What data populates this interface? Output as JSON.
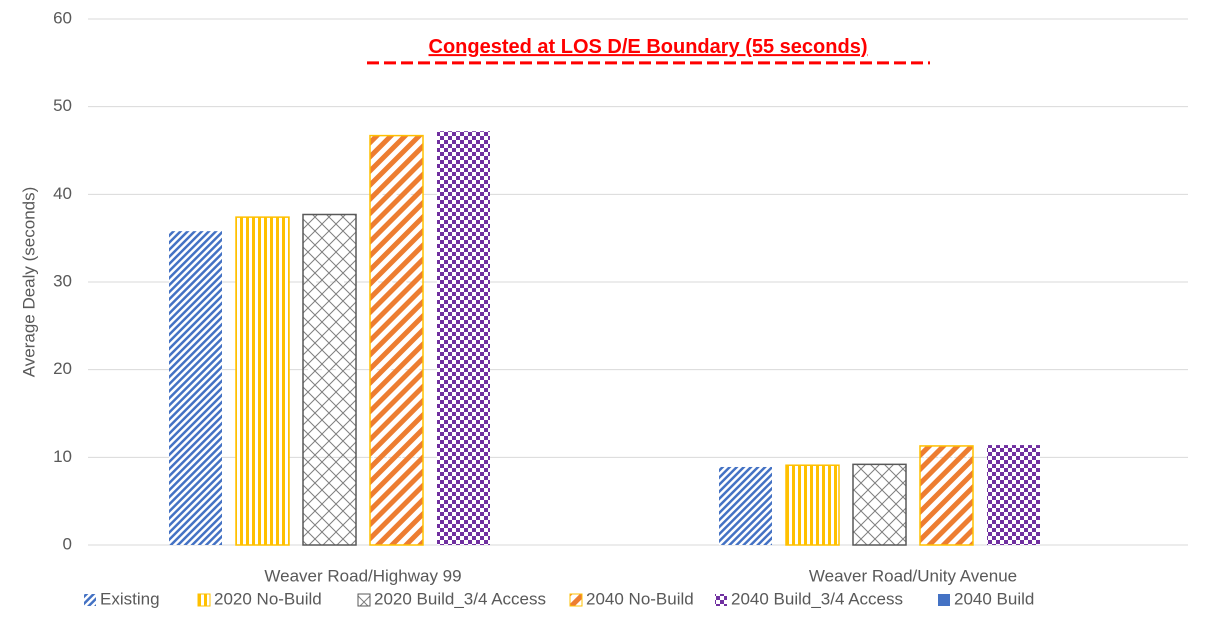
{
  "chart_data": {
    "type": "bar",
    "annotation": "Congested at LOS D/E Boundary (55 seconds)",
    "threshold": 55,
    "threshold_color": "#ff0000",
    "ylabel": "Average Dealy (seconds)",
    "categories": [
      "Weaver Road/Highway 99",
      "Weaver Road/Unity Avenue"
    ],
    "series": [
      {
        "name": "Existing",
        "color": "#4472c4",
        "pattern": "diagonal",
        "values": [
          35.8,
          8.9
        ]
      },
      {
        "name": "2020 No-Build",
        "color": "#ffc000",
        "pattern": "vertical",
        "values": [
          37.4,
          9.1
        ]
      },
      {
        "name": "2020 Build_3/4 Access",
        "color": "#7f7f7f",
        "pattern": "crosshatch",
        "values": [
          37.7,
          9.2
        ]
      },
      {
        "name": "2040 No-Build",
        "color": "#ed7d31",
        "pattern": "diagonal-wide",
        "values": [
          46.7,
          11.3
        ]
      },
      {
        "name": "2040 Build_3/4 Access",
        "color": "#7030a0",
        "pattern": "checker",
        "values": [
          47.2,
          11.4
        ]
      },
      {
        "name": "2040 Build",
        "color": "#4472c4",
        "pattern": "solid",
        "values": [
          null,
          null
        ]
      }
    ],
    "ylim": [
      0,
      60
    ],
    "yticks": [
      0,
      10,
      20,
      30,
      40,
      50,
      60
    ],
    "grid": true,
    "legend": "bottom"
  }
}
